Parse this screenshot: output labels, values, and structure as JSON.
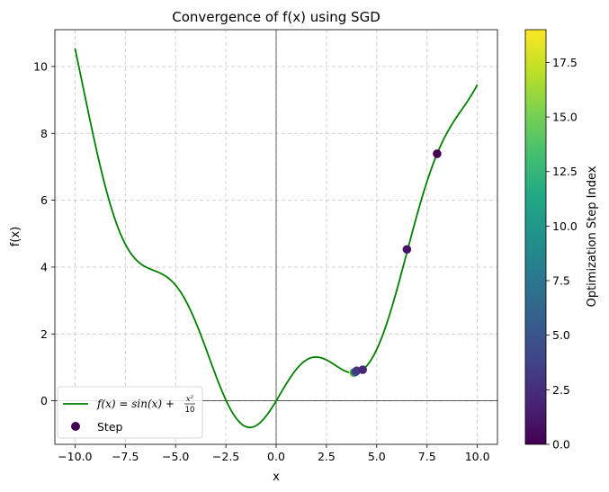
{
  "chart_data": {
    "type": "line",
    "title": "Convergence of f(x) using SGD",
    "xlabel": "x",
    "ylabel": "f(x)",
    "xlim": [
      -11,
      11
    ],
    "ylim": [
      -1.3,
      11.1
    ],
    "x_ticks": [
      -10.0,
      -7.5,
      -5.0,
      -2.5,
      0.0,
      2.5,
      5.0,
      7.5,
      10.0
    ],
    "x_tick_labels": [
      "−10.0",
      "−7.5",
      "−5.0",
      "−2.5",
      "0.0",
      "2.5",
      "5.0",
      "7.5",
      "10.0"
    ],
    "y_ticks": [
      0,
      2,
      4,
      6,
      8,
      10
    ],
    "y_tick_labels": [
      "0",
      "2",
      "4",
      "6",
      "8",
      "10"
    ],
    "grid": true,
    "legend_position": "lower-left",
    "series": [
      {
        "name": "f(x) = sin(x) + x²/10",
        "kind": "function",
        "expression": "sin(x) + x^2/10",
        "x_range": [
          -10,
          10
        ],
        "color": "#008000"
      },
      {
        "name": "Step",
        "kind": "scatter",
        "points": [
          {
            "x": 8.0,
            "y": 7.39,
            "step": 0
          },
          {
            "x": 6.5,
            "y": 4.53,
            "step": 1
          },
          {
            "x": 4.3,
            "y": 0.93,
            "step": 2
          },
          {
            "x": 4.0,
            "y": 0.9,
            "step": 3
          },
          {
            "x": 3.95,
            "y": 0.87,
            "step": 5
          },
          {
            "x": 3.88,
            "y": 0.85,
            "step": 10
          },
          {
            "x": 3.84,
            "y": 0.84,
            "step": 19
          }
        ]
      }
    ],
    "legend": {
      "line_label_parts": {
        "lhs": "f(x) = sin(x) + ",
        "num": "x²",
        "den": "10"
      },
      "scatter_label": "Step"
    },
    "colorbar": {
      "label": "Optimization Step Index",
      "colormap": "viridis",
      "range": [
        0,
        19
      ],
      "ticks": [
        0.0,
        2.5,
        5.0,
        7.5,
        10.0,
        12.5,
        15.0,
        17.5
      ],
      "tick_labels": [
        "0.0",
        "2.5",
        "5.0",
        "7.5",
        "10.0",
        "12.5",
        "15.0",
        "17.5"
      ]
    }
  }
}
